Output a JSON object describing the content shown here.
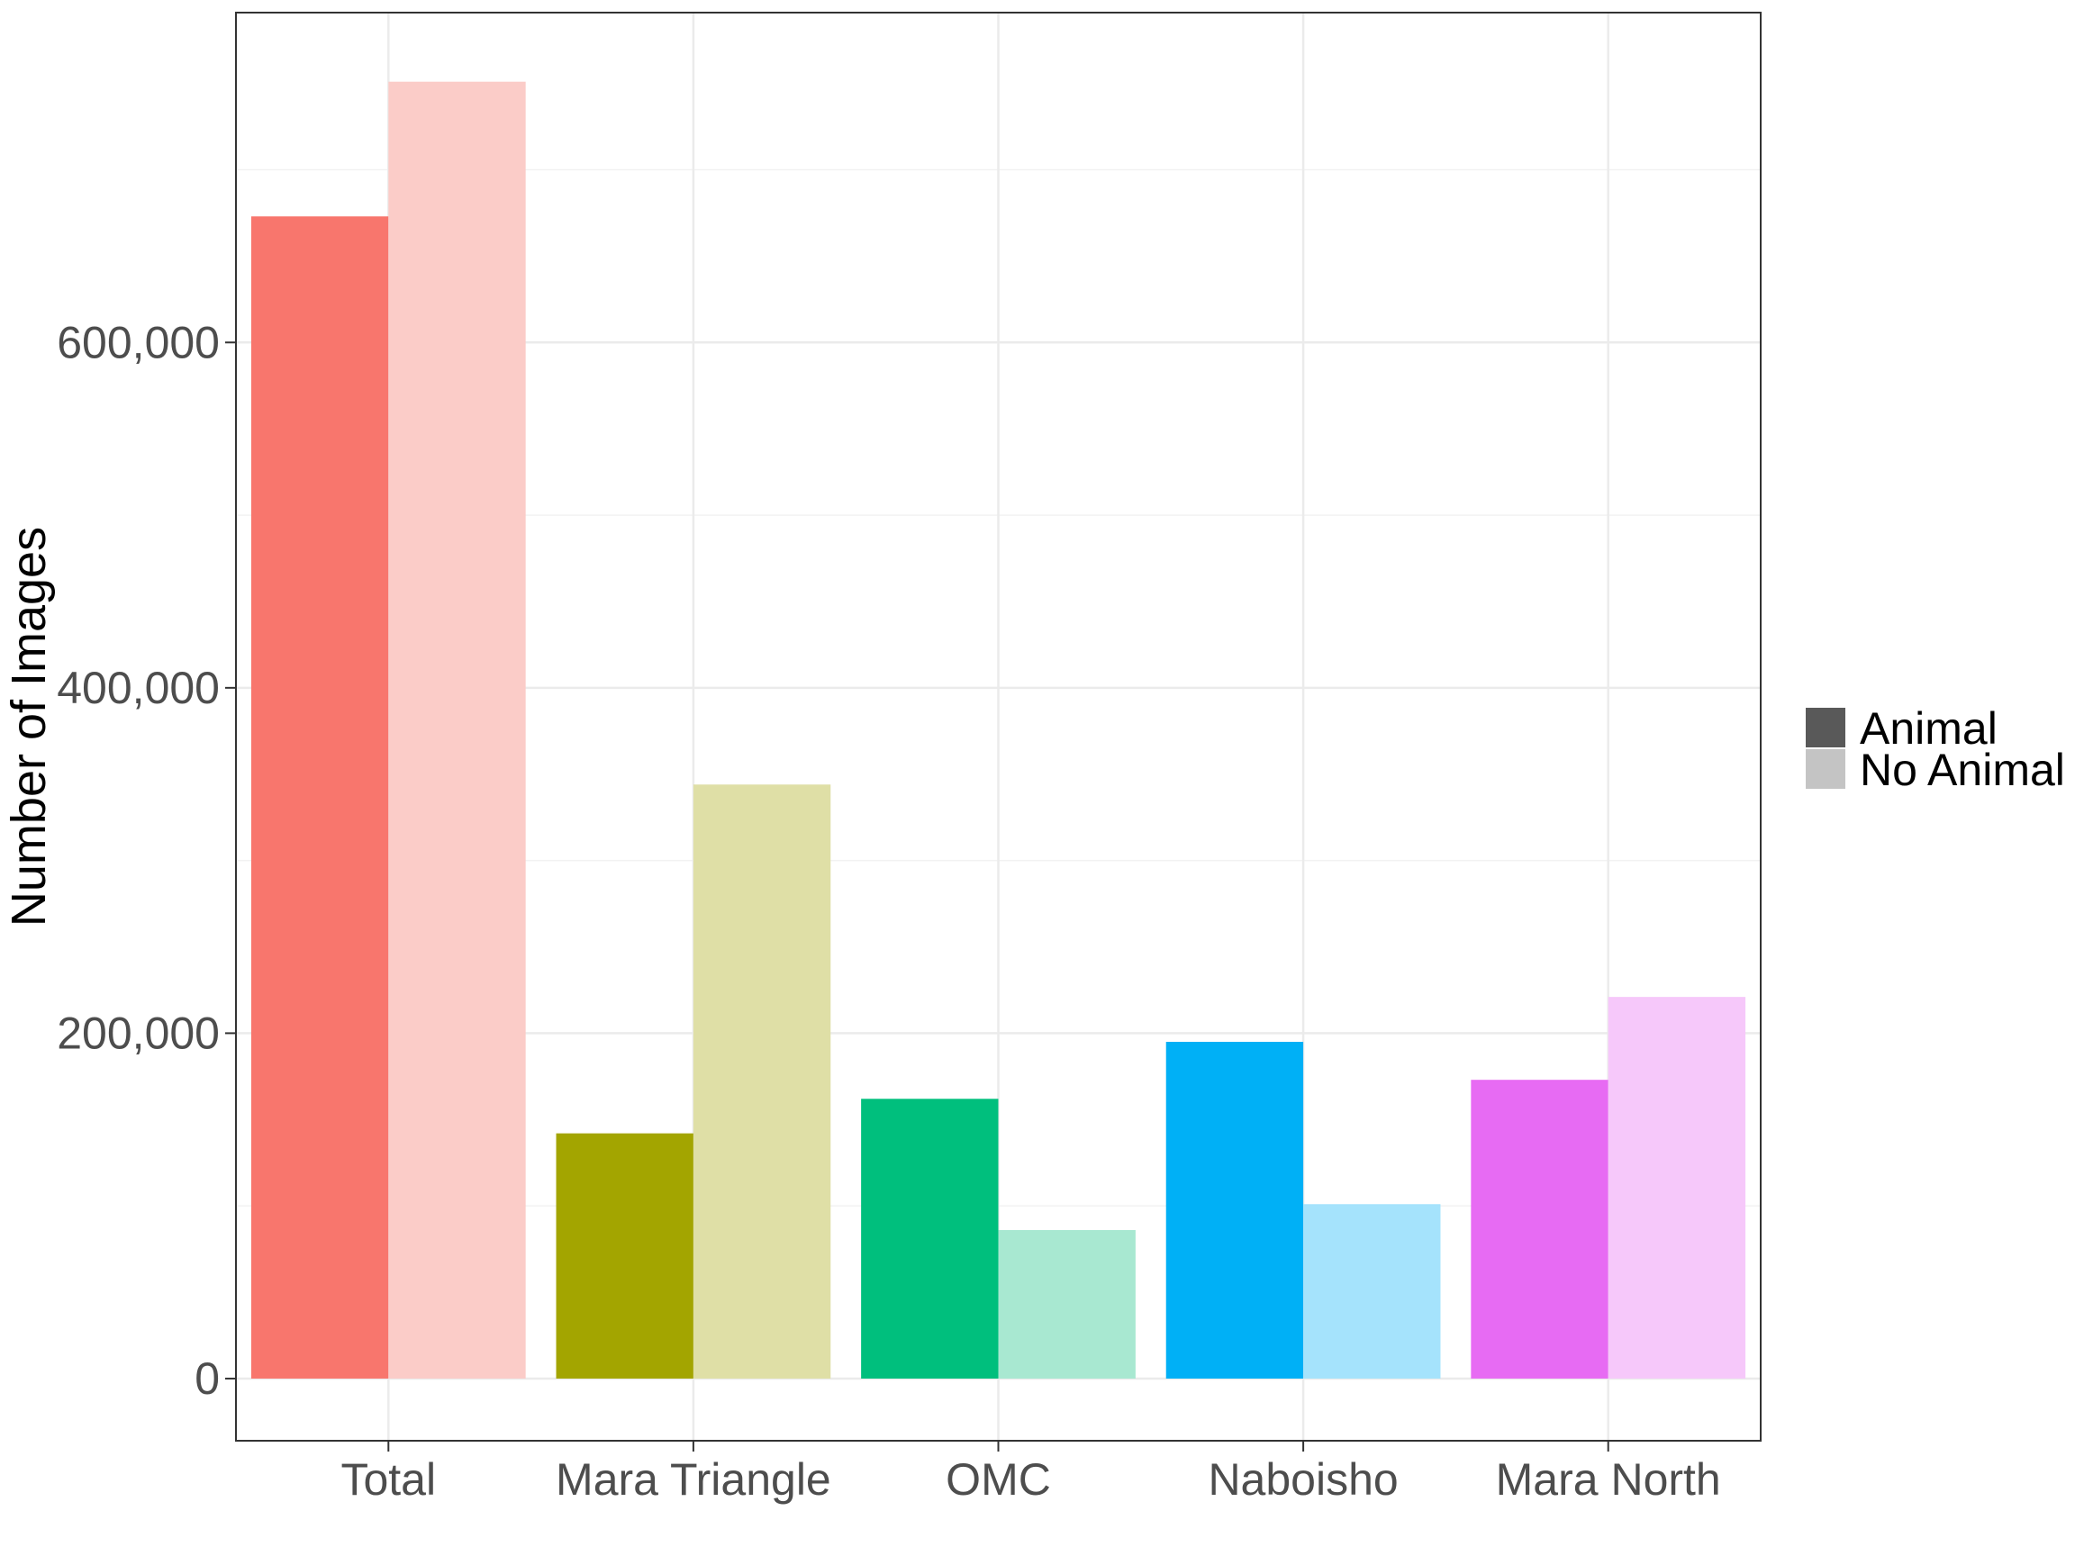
{
  "chart_data": {
    "type": "bar",
    "categories": [
      "Total",
      "Mara Triangle",
      "OMC",
      "Naboisho",
      "Mara North"
    ],
    "series": [
      {
        "name": "Animal",
        "values": [
          673000,
          142000,
          162000,
          195000,
          173000
        ]
      },
      {
        "name": "No Animal",
        "values": [
          751000,
          344000,
          86000,
          101000,
          221000
        ]
      }
    ],
    "colors": {
      "animal": [
        "#F8766D",
        "#A3A500",
        "#00BF7D",
        "#00B0F6",
        "#E76BF3"
      ],
      "no_animal": [
        "#FBCCC8",
        "#DFDFA6",
        "#A8E8D1",
        "#A5E3FC",
        "#F6C8FA"
      ],
      "legend_animal": "#595959",
      "legend_no_animal": "#C4C4C4"
    },
    "title": "",
    "xlabel": "",
    "ylabel": "Number of Images",
    "yticks": [
      0,
      200000,
      400000,
      600000
    ],
    "ytick_labels": [
      "0",
      "200,000",
      "400,000",
      "600,000"
    ],
    "ylim": [
      -36000,
      791000
    ],
    "grid": true,
    "legend_position": "right"
  }
}
